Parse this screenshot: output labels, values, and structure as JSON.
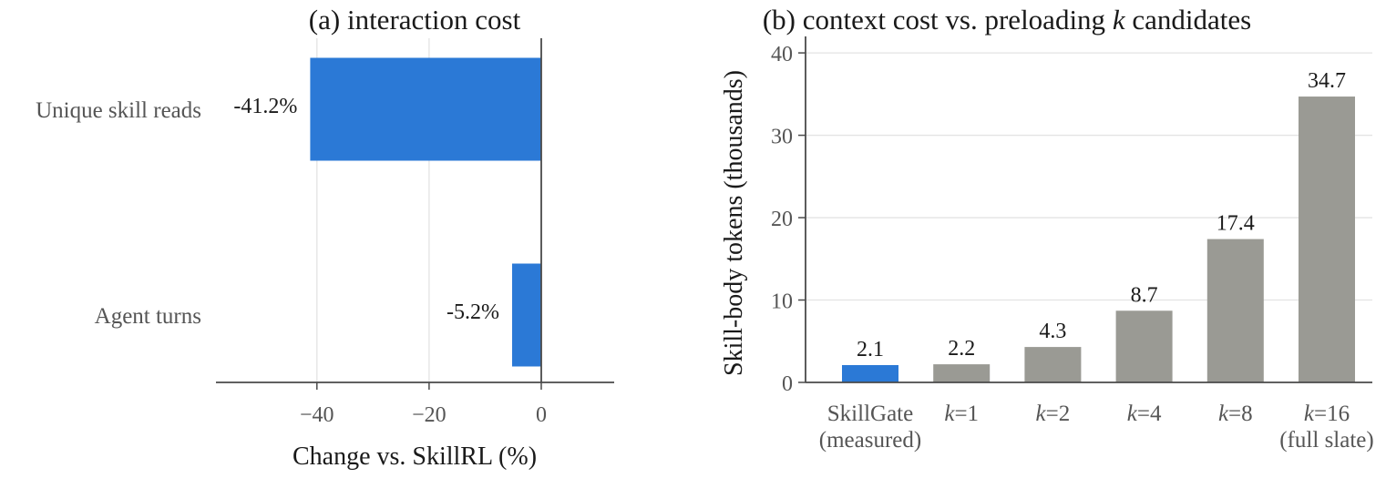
{
  "chart_data": [
    {
      "type": "bar",
      "orientation": "horizontal",
      "title": "(a) interaction cost",
      "xlabel": "Change vs. SkillRL (%)",
      "ylabel": "",
      "categories": [
        "Unique skill reads",
        "Agent turns"
      ],
      "values": [
        -41.2,
        -5.2
      ],
      "value_labels": [
        "-41.2%",
        "-5.2%"
      ],
      "xlim": [
        -58,
        13
      ],
      "xticks": [
        -40,
        -20,
        0
      ],
      "xtick_labels": [
        "−40",
        "−20",
        "0"
      ],
      "grid": "vertical",
      "bar_color": "#2b79d6"
    },
    {
      "type": "bar",
      "orientation": "vertical",
      "title_parts": [
        "(b) context cost vs. preloading ",
        "k",
        " candidates"
      ],
      "xlabel": "",
      "ylabel": "Skill-body tokens (thousands)",
      "categories": [
        {
          "lines": [
            {
              "text": "SkillGate"
            },
            {
              "text": "(measured)"
            }
          ]
        },
        {
          "lines": [
            {
              "italic": "k",
              "text": "=1"
            }
          ]
        },
        {
          "lines": [
            {
              "italic": "k",
              "text": "=2"
            }
          ]
        },
        {
          "lines": [
            {
              "italic": "k",
              "text": "=4"
            }
          ]
        },
        {
          "lines": [
            {
              "italic": "k",
              "text": "=8"
            }
          ]
        },
        {
          "lines": [
            {
              "italic": "k",
              "text": "=16"
            },
            {
              "text": "(full slate)"
            }
          ]
        }
      ],
      "values": [
        2.1,
        2.2,
        4.3,
        8.7,
        17.4,
        34.7
      ],
      "value_labels": [
        "2.1",
        "2.2",
        "4.3",
        "8.7",
        "17.4",
        "34.7"
      ],
      "ylim": [
        0,
        42
      ],
      "yticks": [
        0,
        10,
        20,
        30,
        40
      ],
      "ytick_labels": [
        "0",
        "10",
        "20",
        "30",
        "40"
      ],
      "grid": "horizontal",
      "bar_colors": [
        "#2b79d6",
        "#9a9a94",
        "#9a9a94",
        "#9a9a94",
        "#9a9a94",
        "#9a9a94"
      ]
    }
  ]
}
